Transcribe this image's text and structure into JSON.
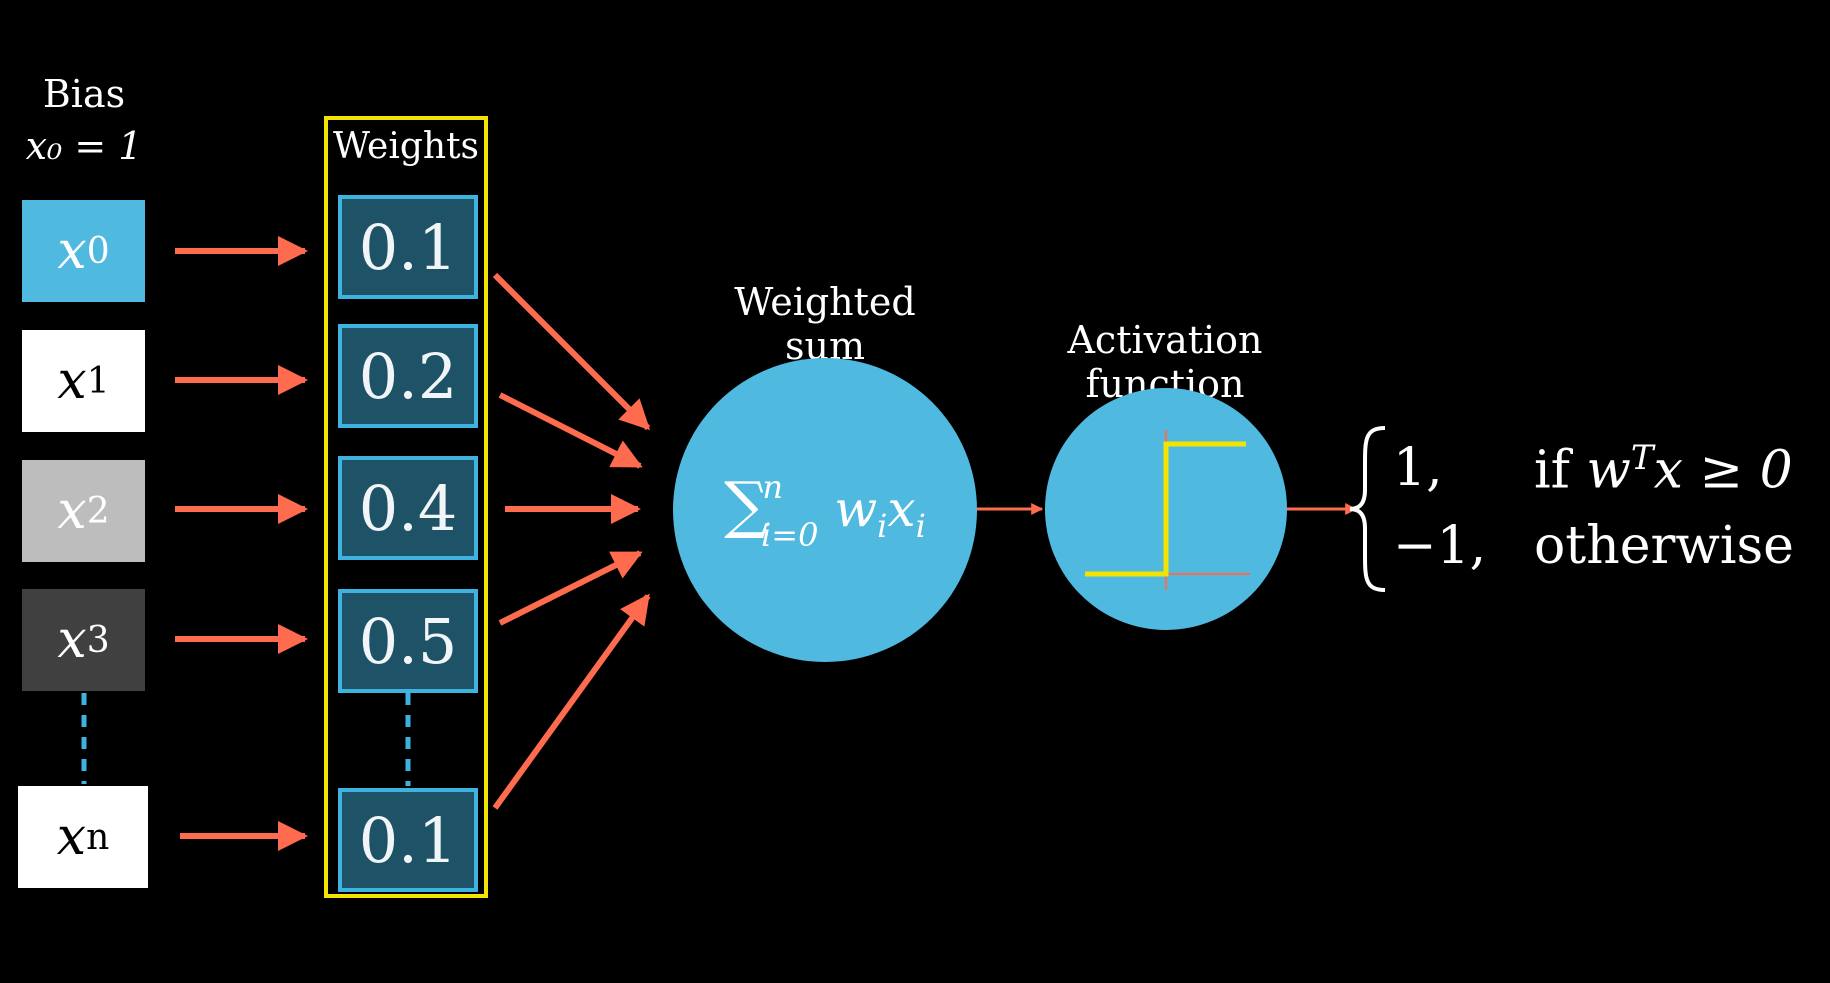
{
  "bias": {
    "title": "Bias",
    "equation": "x₀ = 1"
  },
  "inputs": [
    {
      "var": "x",
      "sub": "0",
      "bg": "#4fb9df",
      "fg": "#ffffff"
    },
    {
      "var": "x",
      "sub": "1",
      "bg": "#ffffff",
      "fg": "#000000"
    },
    {
      "var": "x",
      "sub": "2",
      "bg": "#bdbdbd",
      "fg": "#ffffff"
    },
    {
      "var": "x",
      "sub": "3",
      "bg": "#404040",
      "fg": "#ffffff"
    },
    {
      "var": "x",
      "sub": "n",
      "bg": "#ffffff",
      "fg": "#000000"
    }
  ],
  "weights": {
    "title": "Weights",
    "values": [
      "0.1",
      "0.2",
      "0.4",
      "0.5",
      "0.1"
    ]
  },
  "weighted_sum": {
    "label": "Weighted sum",
    "sigma": "∑",
    "upper": "n",
    "lower": "i=0",
    "term_w": "w",
    "term_w_sub": "i",
    "term_x": "x",
    "term_x_sub": "i"
  },
  "activation": {
    "label": "Activation function"
  },
  "output_rule": {
    "case1_value": "1,",
    "case1_cond_prefix": "if ",
    "case1_w": "w",
    "case1_sup": "T",
    "case1_rest": "x ≥ 0",
    "case2_value": "−1,",
    "case2_cond": "otherwise"
  },
  "colors": {
    "arrow": "#ff6b4e",
    "frame": "#f3e300",
    "node": "#4fb9df",
    "weight_bg": "#1d5267",
    "weight_border": "#3fb3df",
    "step": "#f3e300"
  }
}
